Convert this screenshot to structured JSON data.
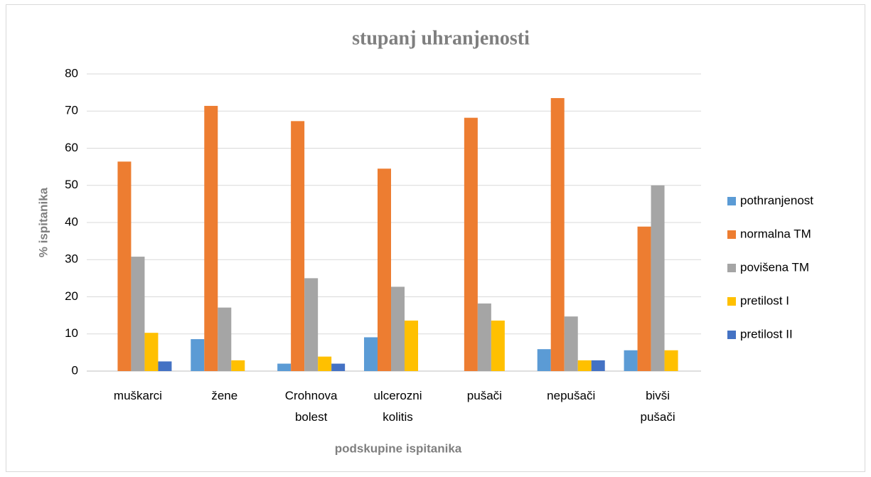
{
  "chart_data": {
    "type": "bar",
    "title": "stupanj uhranjenosti",
    "xlabel": "podskupine ispitanika",
    "ylabel": "% ispitanika",
    "categories": [
      "muškarci",
      "žene",
      "Crohnova bolest",
      "ulcerozni kolitis",
      "pušači",
      "nepušači",
      "bivši pušači"
    ],
    "series": [
      {
        "name": "pothranjenost",
        "color": "#5b9bd5",
        "values": [
          0,
          8.6,
          2.0,
          9.1,
          0,
          5.9,
          5.6
        ]
      },
      {
        "name": "normalna TM",
        "color": "#ed7d31",
        "values": [
          56.4,
          71.4,
          67.3,
          54.5,
          68.2,
          73.5,
          38.9
        ]
      },
      {
        "name": "povišena TM",
        "color": "#a5a5a5",
        "values": [
          30.8,
          17.1,
          25.0,
          22.7,
          18.2,
          14.7,
          50.0
        ]
      },
      {
        "name": "pretilost I",
        "color": "#ffc000",
        "values": [
          10.3,
          2.9,
          3.9,
          13.6,
          13.6,
          2.9,
          5.6
        ]
      },
      {
        "name": "pretilost II",
        "color": "#4472c4",
        "values": [
          2.6,
          0,
          2.0,
          0,
          0,
          2.9,
          0
        ]
      }
    ],
    "ylim": [
      0,
      80
    ],
    "yticks": [
      0,
      10,
      20,
      30,
      40,
      50,
      60,
      70,
      80
    ],
    "grid": true,
    "legend": "right"
  }
}
